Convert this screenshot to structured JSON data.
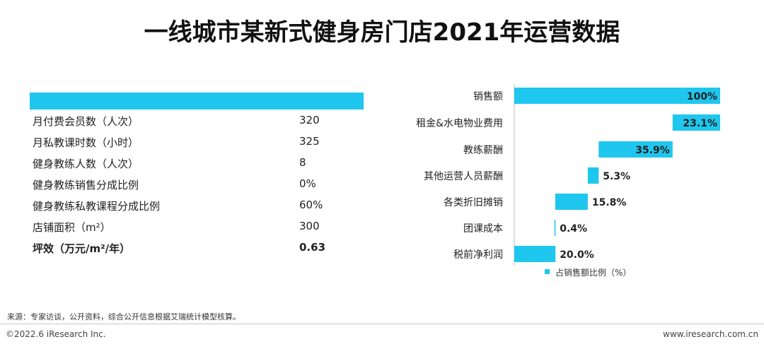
{
  "title": "一线城市某新式健身房门店2021年运营数据",
  "table": {
    "rows": [
      {
        "label": "月付费会员数（人次）",
        "value": "320",
        "bold": false
      },
      {
        "label": "月私教课时数（小时）",
        "value": "325",
        "bold": false
      },
      {
        "label": "健身教练人数（人次）",
        "value": "8",
        "bold": false
      },
      {
        "label": "健身教练销售分成比例",
        "value": "0%",
        "bold": false
      },
      {
        "label": "健身教练私教课程分成比例",
        "value": "60%",
        "bold": false
      },
      {
        "label": "店铺面积（m²）",
        "value": "300",
        "bold": false
      },
      {
        "label": "坪效（万元/m²/年）",
        "value": "0.63",
        "bold": true
      }
    ]
  },
  "chart_data": {
    "type": "bar",
    "subtype": "waterfall",
    "categories": [
      "销售额",
      "租金&水电物业费用",
      "教练薪酬",
      "其他运营人员薪酬",
      "各类折旧摊销",
      "团课成本",
      "税前净利润"
    ],
    "series": [
      {
        "name": "占销售额比例（%）",
        "values": [
          100,
          23.1,
          35.9,
          5.3,
          15.8,
          0.4,
          20.0
        ]
      }
    ],
    "value_labels": [
      "100%",
      "23.1%",
      "35.9%",
      "5.3%",
      "15.8%",
      "0.4%",
      "20.0%"
    ],
    "xlim": [
      0,
      100
    ],
    "grid": false,
    "legend_position": "bottom",
    "colors": {
      "bar": "#1fc6ee"
    }
  },
  "footer": {
    "source": "来源：专家访谈，公开资料，综合公开信息根据艾瑞统计模型核算。",
    "copyright": "©2022.6 iResearch Inc.",
    "website": "www.iresearch.com.cn"
  }
}
